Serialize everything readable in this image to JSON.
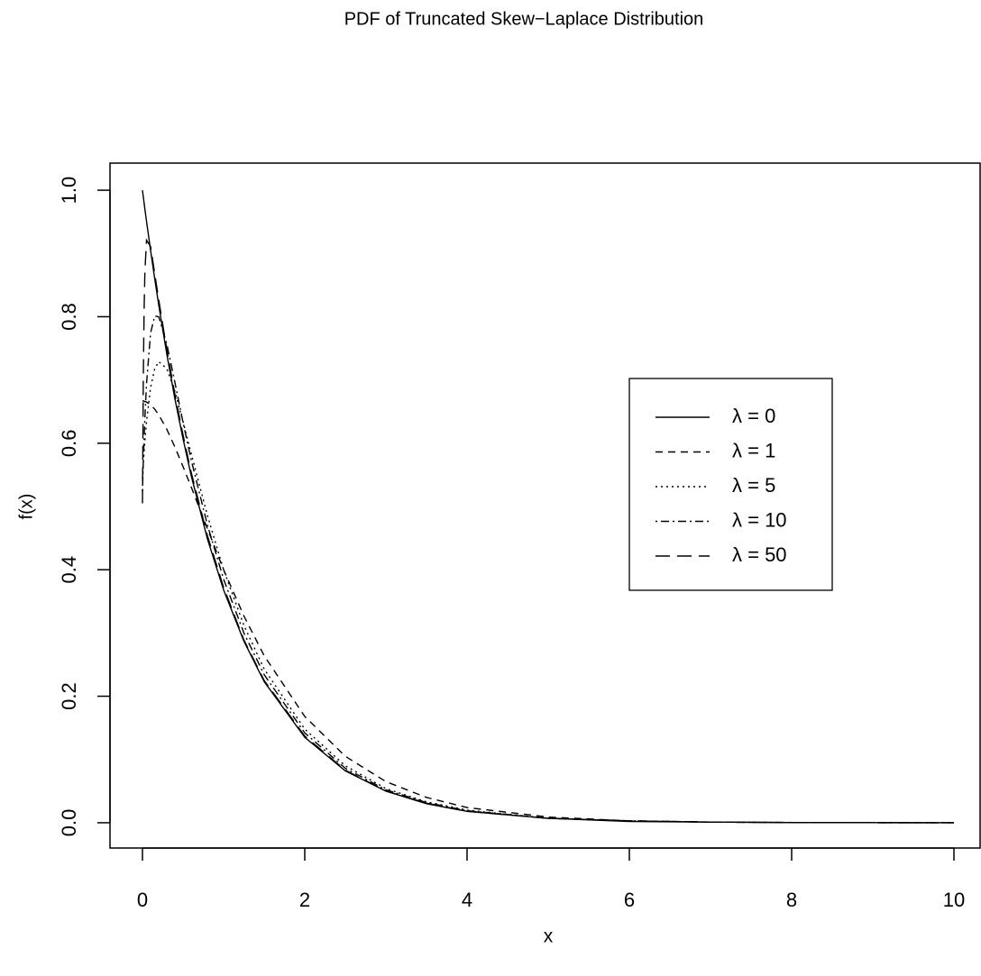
{
  "chart_data": {
    "type": "line",
    "title": "PDF of Truncated Skew−Laplace Distribution",
    "xlabel": "x",
    "ylabel": "f(x)",
    "x": [
      0,
      0.01,
      0.02,
      0.03,
      0.05,
      0.1,
      0.15,
      0.2,
      0.3,
      0.4,
      0.5,
      0.6,
      0.8,
      1,
      1.25,
      1.5,
      2,
      2.5,
      3,
      3.5,
      4,
      5,
      6,
      7,
      8,
      9,
      10
    ],
    "series": [
      {
        "name": "λ = 0",
        "color": "#000000",
        "linestyle": "solid",
        "values": [
          1,
          0.99,
          0.98,
          0.97,
          0.951,
          0.905,
          0.861,
          0.819,
          0.741,
          0.67,
          0.607,
          0.549,
          0.449,
          0.368,
          0.287,
          0.223,
          0.135,
          0.082,
          0.05,
          0.03,
          0.018,
          0.007,
          0.002,
          0.001,
          0.0003,
          0.0001,
          0
        ]
      },
      {
        "name": "λ = 1",
        "color": "#000000",
        "linestyle": "dashed",
        "values": [
          0.667,
          0.667,
          0.666,
          0.666,
          0.665,
          0.661,
          0.654,
          0.645,
          0.622,
          0.594,
          0.563,
          0.531,
          0.465,
          0.4,
          0.327,
          0.264,
          0.168,
          0.105,
          0.065,
          0.04,
          0.024,
          0.009,
          0.003,
          0.001,
          0.0004,
          0.0001,
          0.0001
        ]
      },
      {
        "name": "λ = 5",
        "color": "#000000",
        "linestyle": "dotted",
        "values": [
          0.545,
          0.566,
          0.586,
          0.603,
          0.634,
          0.688,
          0.717,
          0.729,
          0.718,
          0.682,
          0.634,
          0.584,
          0.486,
          0.4,
          0.312,
          0.243,
          0.148,
          0.09,
          0.054,
          0.033,
          0.02,
          0.007,
          0.003,
          0.001,
          0.0003,
          0.0001,
          0
        ]
      },
      {
        "name": "λ = 10",
        "color": "#000000",
        "linestyle": "dotdash",
        "values": [
          0.524,
          0.568,
          0.607,
          0.64,
          0.694,
          0.774,
          0.801,
          0.8,
          0.757,
          0.696,
          0.633,
          0.574,
          0.471,
          0.385,
          0.3,
          0.234,
          0.142,
          0.086,
          0.052,
          0.032,
          0.019,
          0.007,
          0.003,
          0.001,
          0.0003,
          0.0001,
          0
        ]
      },
      {
        "name": "λ = 50",
        "color": "#000000",
        "linestyle": "longdash",
        "values": [
          0.505,
          0.697,
          0.808,
          0.871,
          0.921,
          0.911,
          0.869,
          0.827,
          0.748,
          0.677,
          0.613,
          0.554,
          0.454,
          0.372,
          0.289,
          0.225,
          0.137,
          0.083,
          0.05,
          0.031,
          0.018,
          0.007,
          0.003,
          0.001,
          0.0003,
          0.0001,
          0
        ]
      }
    ],
    "xlim": [
      -0.4,
      10.4
    ],
    "xticks": [
      0,
      2,
      4,
      6,
      8,
      10
    ],
    "ylim": [
      -0.04,
      1.04
    ],
    "yticks": [
      {
        "value": 0,
        "label": "0.0"
      },
      {
        "value": 0.2,
        "label": "0.2"
      },
      {
        "value": 0.4,
        "label": "0.4"
      },
      {
        "value": 0.6,
        "label": "0.6"
      },
      {
        "value": 0.8,
        "label": "0.8"
      },
      {
        "value": 1,
        "label": "1.0"
      }
    ],
    "grid": false
  }
}
